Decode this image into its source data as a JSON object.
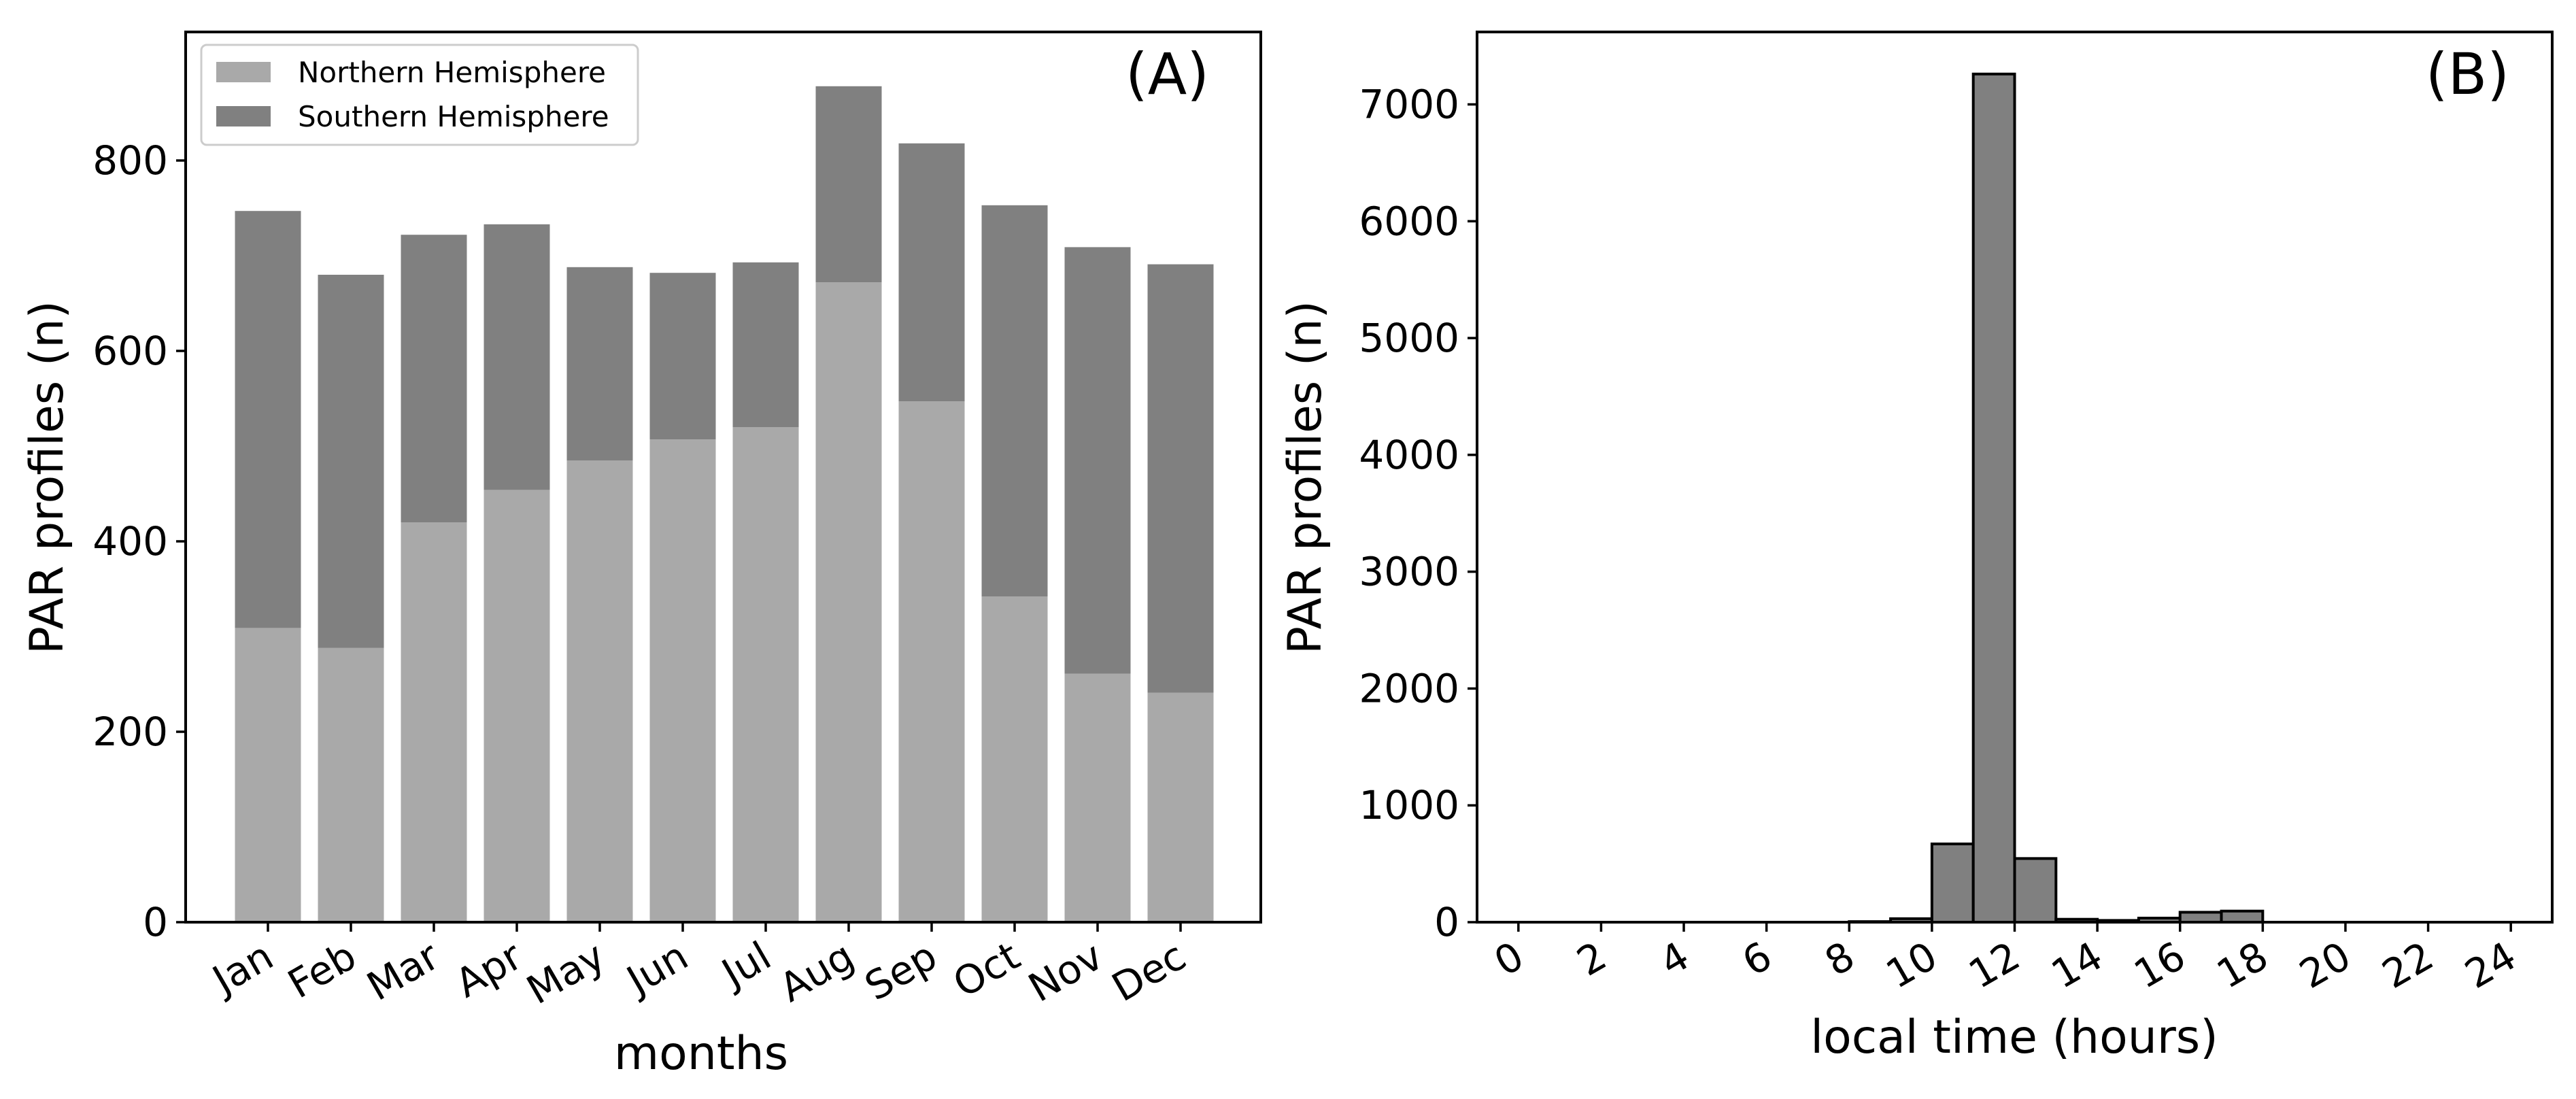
{
  "chart_data": [
    {
      "type": "bar",
      "stacked": true,
      "panel_label": "(A)",
      "xlabel": "months",
      "ylabel": "PAR profiles (n)",
      "categories": [
        "Jan",
        "Feb",
        "Mar",
        "Apr",
        "May",
        "Jun",
        "Jul",
        "Aug",
        "Sep",
        "Oct",
        "Nov",
        "Dec"
      ],
      "series": [
        {
          "name": "Northern Hemisphere",
          "color": "#a9a9a9",
          "values": [
            309,
            288,
            420,
            454,
            485,
            507,
            520,
            672,
            547,
            342,
            261,
            241
          ]
        },
        {
          "name": "Southern Hemisphere",
          "color": "#808080",
          "values": [
            438,
            392,
            302,
            279,
            203,
            175,
            173,
            206,
            271,
            411,
            448,
            450
          ]
        }
      ],
      "ylim": [
        0,
        935
      ],
      "yticks": [
        0,
        200,
        400,
        600,
        800
      ],
      "legend": "top-left",
      "grid": false
    },
    {
      "type": "bar",
      "histogram": true,
      "panel_label": "(B)",
      "xlabel": "local time (hours)",
      "ylabel": "PAR profiles (n)",
      "bin_width": 1,
      "bins_start": [
        8,
        9,
        10,
        11,
        12,
        13,
        14,
        15,
        16,
        17
      ],
      "values": [
        5,
        30,
        670,
        7260,
        545,
        25,
        15,
        35,
        85,
        95
      ],
      "color": "#808080",
      "edgecolor": "#000000",
      "xlim": [
        -1,
        25
      ],
      "ylim": [
        0,
        7620
      ],
      "xticks": [
        0,
        2,
        4,
        6,
        8,
        10,
        12,
        14,
        16,
        18,
        20,
        22,
        24
      ],
      "yticks": [
        0,
        1000,
        2000,
        3000,
        4000,
        5000,
        6000,
        7000
      ],
      "grid": false
    }
  ]
}
